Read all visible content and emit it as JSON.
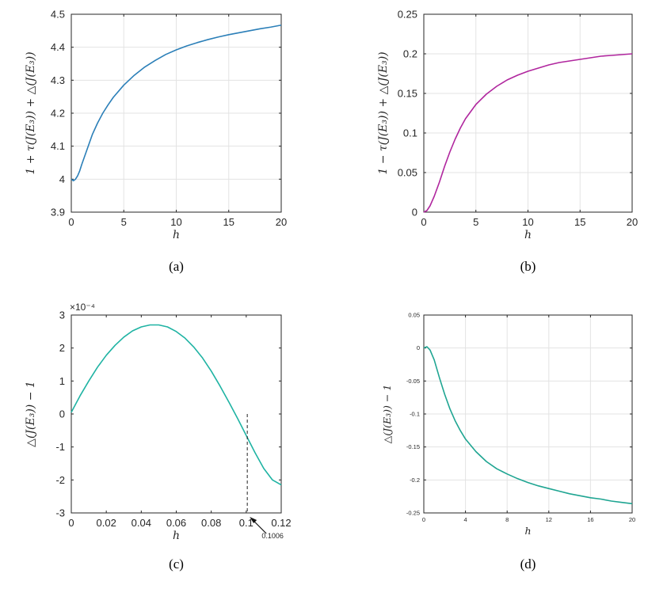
{
  "chart_data": [
    {
      "type": "line",
      "caption": "(a)",
      "xlabel": "h",
      "ylabel": "1 + τ(J(E₃)) + △(J(E₃))",
      "xlim": [
        0,
        20
      ],
      "ylim": [
        3.9,
        4.5
      ],
      "xticks": [
        0,
        5,
        10,
        15,
        20
      ],
      "yticks": [
        3.9,
        4.0,
        4.1,
        4.2,
        4.3,
        4.4,
        4.5
      ],
      "ytick_labels": [
        "3.9",
        "4",
        "4.1",
        "4.2",
        "4.3",
        "4.4",
        "4.5"
      ],
      "grid": true,
      "color": "#2b7fb8",
      "series": [
        {
          "x": [
            0,
            0.2,
            0.4,
            0.6,
            0.8,
            1,
            1.5,
            2,
            2.5,
            3,
            3.5,
            4,
            5,
            6,
            7,
            8,
            9,
            10,
            11,
            12,
            13,
            14,
            15,
            16,
            17,
            18,
            19,
            20
          ],
          "y": [
            4.0,
            3.995,
            4.0,
            4.01,
            4.025,
            4.045,
            4.09,
            4.135,
            4.17,
            4.2,
            4.225,
            4.248,
            4.285,
            4.315,
            4.34,
            4.36,
            4.378,
            4.392,
            4.404,
            4.414,
            4.423,
            4.431,
            4.438,
            4.444,
            4.45,
            4.456,
            4.461,
            4.467
          ]
        }
      ]
    },
    {
      "type": "line",
      "caption": "(b)",
      "xlabel": "h",
      "ylabel": "1 − τ(J(E₃)) + △(J(E₃))",
      "xlim": [
        0,
        20
      ],
      "ylim": [
        0,
        0.25
      ],
      "xticks": [
        0,
        5,
        10,
        15,
        20
      ],
      "yticks": [
        0,
        0.05,
        0.1,
        0.15,
        0.2,
        0.25
      ],
      "ytick_labels": [
        "0",
        "0.05",
        "0.1",
        "0.15",
        "0.2",
        "0.25"
      ],
      "grid": true,
      "color": "#b0269e",
      "series": [
        {
          "x": [
            0,
            0.3,
            0.6,
            1,
            1.5,
            2,
            2.5,
            3,
            3.5,
            4,
            5,
            6,
            7,
            8,
            9,
            10,
            11,
            12,
            13,
            14,
            15,
            16,
            17,
            18,
            19,
            20
          ],
          "y": [
            0,
            0.002,
            0.008,
            0.02,
            0.038,
            0.058,
            0.076,
            0.092,
            0.106,
            0.118,
            0.136,
            0.149,
            0.159,
            0.167,
            0.173,
            0.178,
            0.182,
            0.186,
            0.189,
            0.191,
            0.193,
            0.195,
            0.197,
            0.198,
            0.199,
            0.2
          ]
        }
      ]
    },
    {
      "type": "line",
      "caption": "(c)",
      "xlabel": "h",
      "ylabel": "△(J(E₃)) − 1",
      "exponent": "×10⁻⁴",
      "xlim": [
        0,
        0.12
      ],
      "ylim": [
        -3,
        3
      ],
      "xticks": [
        0,
        0.02,
        0.04,
        0.06,
        0.08,
        0.1,
        0.12
      ],
      "xtick_labels": [
        "0",
        "0.02",
        "0.04",
        "0.06",
        "0.08",
        "0.1",
        "0.12"
      ],
      "yticks": [
        -3,
        -2,
        -1,
        0,
        1,
        2,
        3
      ],
      "ytick_labels": [
        "-3",
        "-2",
        "-1",
        "0",
        "1",
        "2",
        "3"
      ],
      "grid": false,
      "color": "#1fb3a3",
      "annotation": {
        "text": "0.1006",
        "x": 0.1006
      },
      "series": [
        {
          "x": [
            0,
            0.005,
            0.01,
            0.015,
            0.02,
            0.025,
            0.03,
            0.035,
            0.04,
            0.045,
            0.05,
            0.055,
            0.06,
            0.065,
            0.07,
            0.075,
            0.08,
            0.085,
            0.09,
            0.095,
            0.1,
            0.105,
            0.11,
            0.115,
            0.12
          ],
          "y": [
            0.05,
            0.55,
            1.0,
            1.42,
            1.78,
            2.08,
            2.33,
            2.52,
            2.64,
            2.7,
            2.7,
            2.64,
            2.5,
            2.3,
            2.03,
            1.7,
            1.3,
            0.85,
            0.37,
            -0.13,
            -0.65,
            -1.17,
            -1.65,
            -2.0,
            -2.15
          ]
        }
      ]
    },
    {
      "type": "line",
      "caption": "(d)",
      "xlabel": "h",
      "ylabel": "△(J(E₃)) − 1",
      "xlim": [
        0,
        20
      ],
      "ylim": [
        -0.25,
        0.05
      ],
      "xticks": [
        0,
        4,
        8,
        12,
        16,
        20
      ],
      "yticks": [
        -0.25,
        -0.2,
        -0.15,
        -0.1,
        -0.05,
        0,
        0.05
      ],
      "ytick_labels": [
        "-0.25",
        "-0.2",
        "-0.15",
        "-0.1",
        "-0.05",
        "0",
        "0.05"
      ],
      "grid": true,
      "color": "#1fa592",
      "series": [
        {
          "x": [
            0,
            0.3,
            0.6,
            1,
            1.5,
            2,
            2.5,
            3,
            3.5,
            4,
            5,
            6,
            7,
            8,
            9,
            10,
            11,
            12,
            13,
            14,
            15,
            16,
            17,
            18,
            19,
            20
          ],
          "y": [
            0,
            0.002,
            -0.003,
            -0.018,
            -0.045,
            -0.07,
            -0.092,
            -0.11,
            -0.125,
            -0.138,
            -0.157,
            -0.172,
            -0.183,
            -0.191,
            -0.198,
            -0.204,
            -0.209,
            -0.213,
            -0.217,
            -0.221,
            -0.224,
            -0.227,
            -0.229,
            -0.232,
            -0.234,
            -0.236
          ]
        }
      ]
    }
  ]
}
